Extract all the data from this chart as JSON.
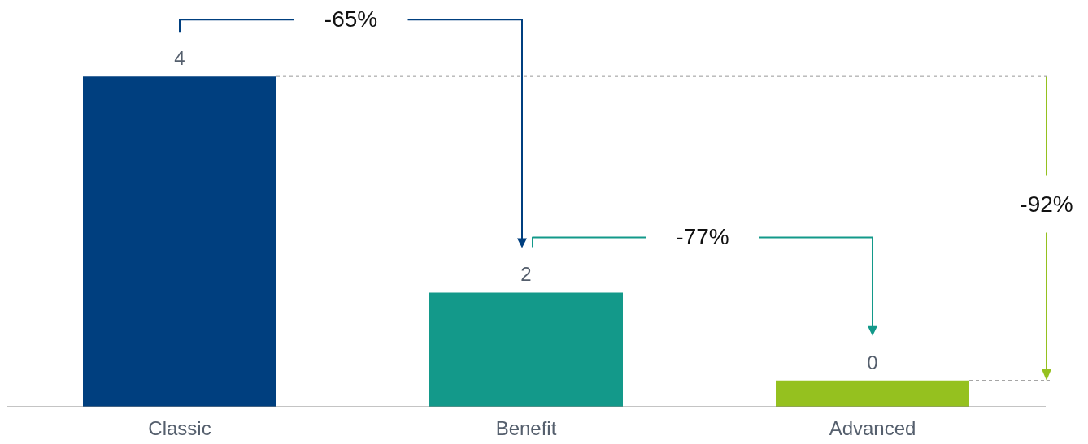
{
  "chart_data": {
    "type": "bar",
    "categories": [
      "Classic",
      "Benefit",
      "Advanced"
    ],
    "values": [
      4.4,
      1.52,
      0.35
    ],
    "colors": [
      "#003f7f",
      "#13998a",
      "#95c11f"
    ],
    "value_labels": [
      "4",
      "2",
      "0"
    ],
    "annotations": [
      "-65%",
      "-77%",
      "-92%"
    ],
    "ref_lines": [
      {
        "axis": "y",
        "value": 4.4,
        "color": "#999999",
        "line_style": "dashed"
      },
      {
        "axis": "y",
        "value": 0.35,
        "color": "#999999",
        "line_style": "dashed"
      }
    ],
    "grid": false,
    "legend": false
  }
}
